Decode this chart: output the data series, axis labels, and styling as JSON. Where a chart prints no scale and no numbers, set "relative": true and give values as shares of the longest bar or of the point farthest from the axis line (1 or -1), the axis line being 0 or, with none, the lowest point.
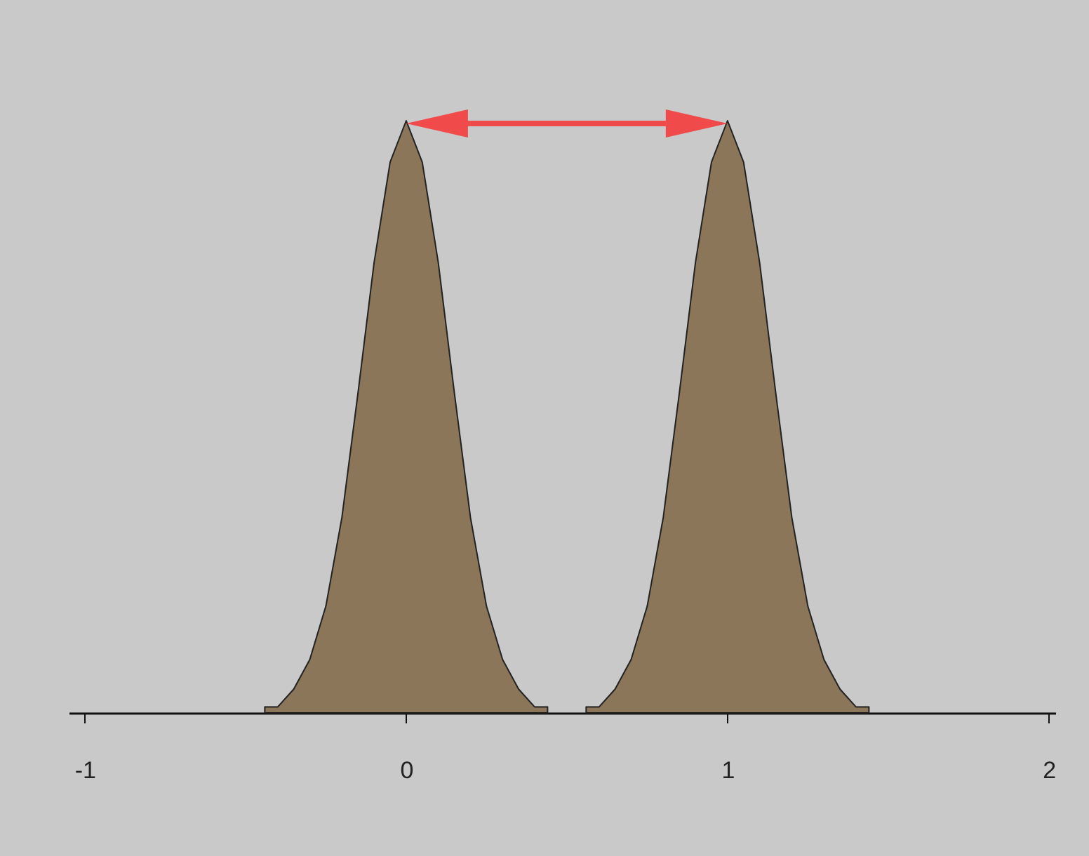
{
  "chart_data": {
    "type": "area",
    "relative": true,
    "xlim": [
      -1.05,
      2.02
    ],
    "xticks": [
      -1,
      0,
      1,
      2
    ],
    "grid": false,
    "series": [
      {
        "color": "#8b7659",
        "x": [
          -0.44,
          -0.4,
          -0.35,
          -0.3,
          -0.25,
          -0.2,
          -0.15,
          -0.1,
          -0.05,
          0,
          0.05,
          0.1,
          0.15,
          0.2,
          0.25,
          0.3,
          0.35,
          0.4,
          0.44
        ],
        "values": [
          0.01,
          0.01,
          0.04,
          0.09,
          0.18,
          0.33,
          0.54,
          0.76,
          0.93,
          1,
          0.93,
          0.76,
          0.54,
          0.33,
          0.18,
          0.09,
          0.04,
          0.01,
          0.01
        ]
      },
      {
        "color": "#8b7659",
        "x": [
          0.56,
          0.6,
          0.65,
          0.7,
          0.75,
          0.8,
          0.85,
          0.9,
          0.95,
          1,
          1.05,
          1.1,
          1.15,
          1.2,
          1.25,
          1.3,
          1.35,
          1.4,
          1.44
        ],
        "values": [
          0.01,
          0.01,
          0.04,
          0.09,
          0.18,
          0.33,
          0.54,
          0.76,
          0.93,
          1,
          0.93,
          0.76,
          0.54,
          0.33,
          0.18,
          0.09,
          0.04,
          0.01,
          0.01
        ]
      }
    ]
  }
}
